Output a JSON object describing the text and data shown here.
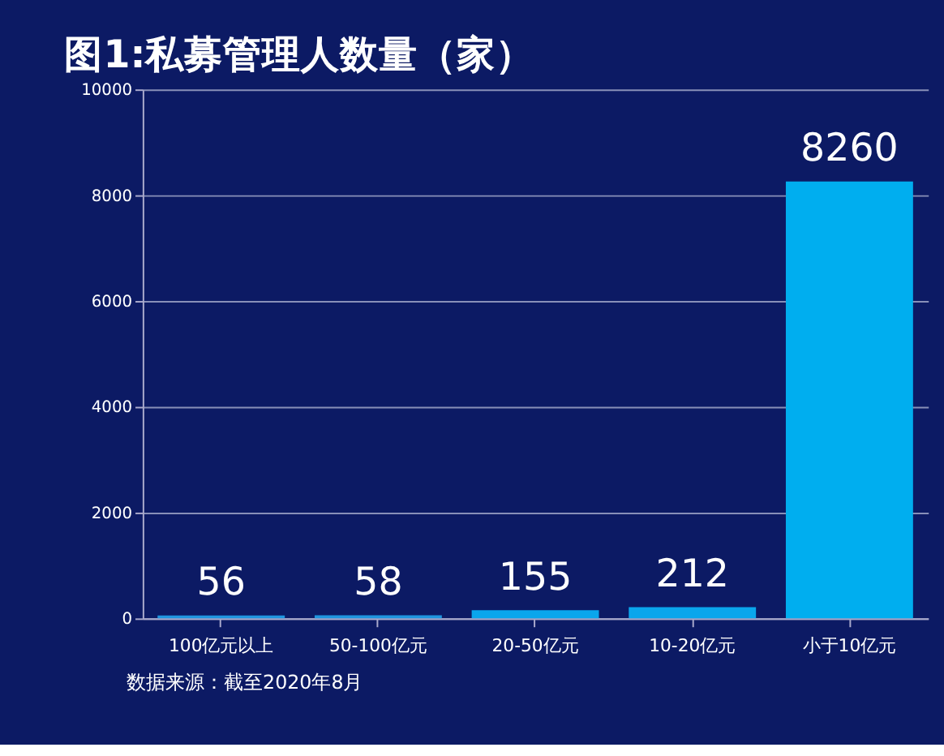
{
  "chart_data": {
    "type": "bar",
    "title": "图1:私募管理人数量（家）",
    "categories": [
      "100亿元以上",
      "50-100亿元",
      "20-50亿元",
      "10-20亿元",
      "小于10亿元"
    ],
    "values": [
      56,
      58,
      155,
      212,
      8260
    ],
    "colors": [
      "#1f95e0",
      "#1f95e0",
      "#0aa6ec",
      "#0aa6ec",
      "#00aeef"
    ],
    "ylim": [
      0,
      10000
    ],
    "yticks": [
      0,
      2000,
      4000,
      6000,
      8000,
      10000
    ],
    "grid": "y",
    "data_labels": true,
    "annotations": [
      "数据来源：截至2020年8月"
    ]
  }
}
